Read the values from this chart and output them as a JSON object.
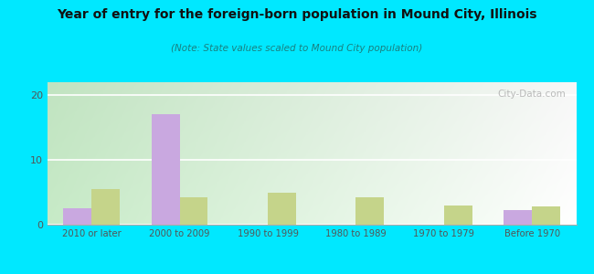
{
  "title": "Year of entry for the foreign-born population in Mound City, Illinois",
  "subtitle": "(Note: State values scaled to Mound City population)",
  "categories": [
    "2010 or later",
    "2000 to 2009",
    "1990 to 1999",
    "1980 to 1989",
    "1970 to 1979",
    "Before 1970"
  ],
  "mound_city": [
    2.5,
    17.0,
    0,
    0,
    0,
    2.2
  ],
  "illinois": [
    5.5,
    4.3,
    5.0,
    4.2,
    3.0,
    2.8
  ],
  "mound_city_color": "#c9a8e0",
  "illinois_color": "#c5d48a",
  "background_outer": "#00e8ff",
  "title_color": "#111111",
  "subtitle_color": "#1a8080",
  "axis_label_color": "#444444",
  "tick_label_color": "#555555",
  "watermark": "City-Data.com",
  "ylim": [
    0,
    22
  ],
  "yticks": [
    0,
    10,
    20
  ],
  "bar_width": 0.32
}
